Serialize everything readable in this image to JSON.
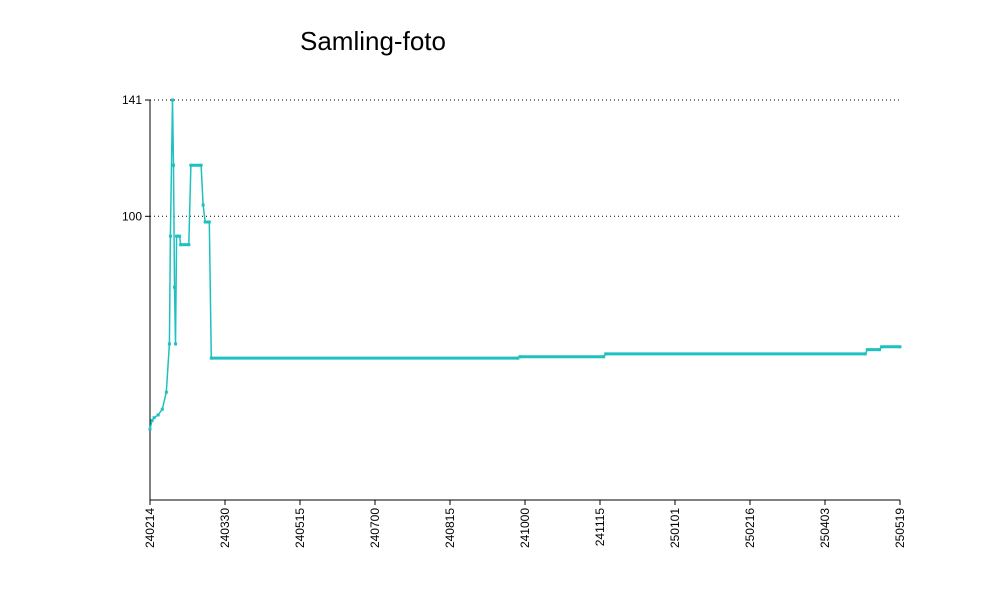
{
  "chart_data": {
    "type": "line",
    "title": "Samling-foto",
    "xlabel": "",
    "ylabel": "",
    "x_tick_labels": [
      "240214",
      "240330",
      "240515",
      "240700",
      "240815",
      "241000",
      "241115",
      "250101",
      "250216",
      "250403",
      "250519"
    ],
    "y_tick_labels": [
      141,
      100
    ],
    "ylim": [
      0,
      141
    ],
    "grid": "horizontal-dotted",
    "series": [
      {
        "color": "#1fc0c0",
        "points": [
          {
            "x": 0.0,
            "y": 25
          },
          {
            "x": 1.0,
            "y": 28
          },
          {
            "x": 2.0,
            "y": 29
          },
          {
            "x": 4.0,
            "y": 30
          },
          {
            "x": 6.0,
            "y": 32
          },
          {
            "x": 8.0,
            "y": 38
          },
          {
            "x": 9.5,
            "y": 55
          },
          {
            "x": 10.0,
            "y": 93
          },
          {
            "x": 11.0,
            "y": 141
          },
          {
            "x": 11.5,
            "y": 118
          },
          {
            "x": 12.0,
            "y": 75
          },
          {
            "x": 12.5,
            "y": 55
          },
          {
            "x": 13.0,
            "y": 93
          },
          {
            "x": 14.5,
            "y": 93
          },
          {
            "x": 15.0,
            "y": 90
          },
          {
            "x": 19.0,
            "y": 90
          },
          {
            "x": 20.0,
            "y": 118
          },
          {
            "x": 25.0,
            "y": 118
          },
          {
            "x": 26.0,
            "y": 104
          },
          {
            "x": 27.0,
            "y": 98
          },
          {
            "x": 29.0,
            "y": 98
          },
          {
            "x": 30.0,
            "y": 50
          },
          {
            "x": 180.0,
            "y": 50
          },
          {
            "x": 181.0,
            "y": 50.5
          },
          {
            "x": 222.0,
            "y": 50.5
          },
          {
            "x": 223.0,
            "y": 51.5
          },
          {
            "x": 350.0,
            "y": 51.5
          },
          {
            "x": 351.0,
            "y": 53
          },
          {
            "x": 357.0,
            "y": 53
          },
          {
            "x": 358.0,
            "y": 54
          },
          {
            "x": 367.0,
            "y": 54
          }
        ]
      }
    ],
    "xlim": [
      0,
      367
    ]
  }
}
